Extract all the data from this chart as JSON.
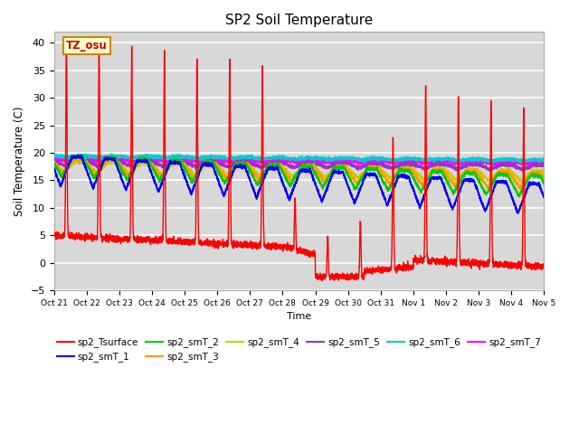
{
  "title": "SP2 Soil Temperature",
  "xlabel": "Time",
  "ylabel": "Soil Temperature (C)",
  "ylim": [
    -5,
    42
  ],
  "yticks": [
    -5,
    0,
    5,
    10,
    15,
    20,
    25,
    30,
    35,
    40
  ],
  "tz_label": "TZ_osu",
  "x_tick_labels": [
    "Oct 21",
    "Oct 22",
    "Oct 23",
    "Oct 24",
    "Oct 25",
    "Oct 26",
    "Oct 27",
    "Oct 28",
    "Oct 29",
    "Oct 30",
    "Oct 31",
    "Nov 1",
    "Nov 2",
    "Nov 3",
    "Nov 4",
    "Nov 5"
  ],
  "n_points": 4320,
  "duration_days": 15,
  "series_colors": {
    "sp2_Tsurface": "#ff0000",
    "sp2_smT_1": "#0000ff",
    "sp2_smT_2": "#00cc00",
    "sp2_smT_3": "#ff9900",
    "sp2_smT_4": "#cccc00",
    "sp2_smT_5": "#9933cc",
    "sp2_smT_6": "#00cccc",
    "sp2_smT_7": "#ff00ff"
  },
  "background_color": "#d8d8d8",
  "grid_color": "#ffffff",
  "title_fontsize": 11
}
